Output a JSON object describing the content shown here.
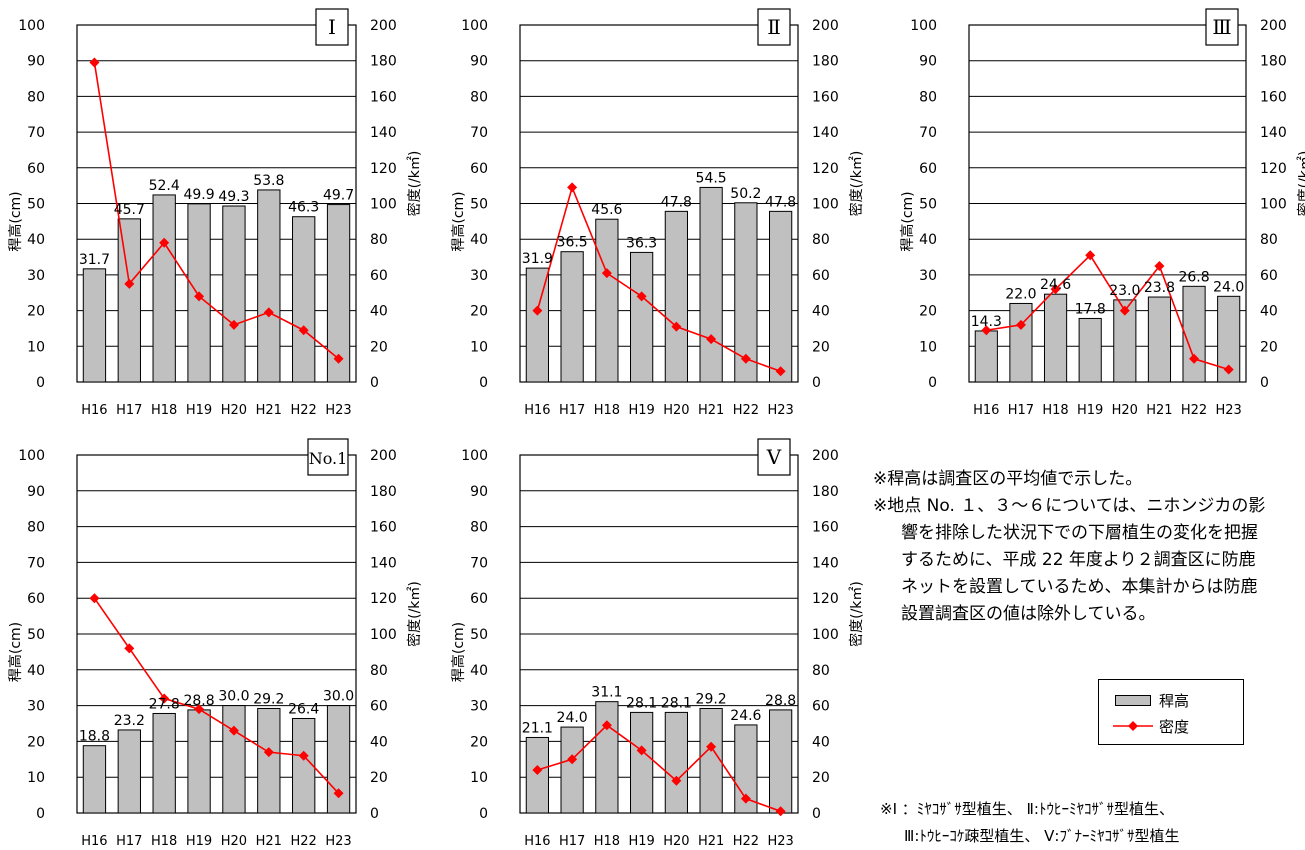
{
  "chart_data": [
    {
      "type": "bar",
      "id": "I",
      "panel_label": "Ⅰ",
      "categories": [
        "H16",
        "H17",
        "H18",
        "H19",
        "H20",
        "H21",
        "H22",
        "H23"
      ],
      "series": [
        {
          "name": "稈高",
          "type": "bar",
          "axis": "left",
          "values": [
            31.7,
            45.7,
            52.4,
            49.9,
            49.3,
            53.8,
            46.3,
            49.7
          ],
          "labels": [
            "31.7",
            "45.7",
            "52.4",
            "49.9",
            "49.3",
            "53.8",
            "46.3",
            "49.7"
          ]
        },
        {
          "name": "密度",
          "type": "line",
          "axis": "right",
          "values": [
            179,
            55,
            78,
            48,
            32,
            39,
            29,
            13
          ]
        }
      ],
      "ylabel": "稈高(cm)",
      "y2label": "密度(/k㎡)",
      "ylim": [
        0,
        100
      ],
      "y2lim": [
        0,
        200
      ],
      "yticks": [
        "0",
        "10",
        "20",
        "30",
        "40",
        "50",
        "60",
        "70",
        "80",
        "90",
        "100"
      ],
      "y2ticks": [
        "0",
        "20",
        "40",
        "60",
        "80",
        "100",
        "120",
        "140",
        "160",
        "180",
        "200"
      ],
      "grid": true
    },
    {
      "type": "bar",
      "id": "II",
      "panel_label": "Ⅱ",
      "categories": [
        "H16",
        "H17",
        "H18",
        "H19",
        "H20",
        "H21",
        "H22",
        "H23"
      ],
      "series": [
        {
          "name": "稈高",
          "type": "bar",
          "axis": "left",
          "values": [
            31.9,
            36.5,
            45.6,
            36.3,
            47.8,
            54.5,
            50.2,
            47.8
          ],
          "labels": [
            "31.9",
            "36.5",
            "45.6",
            "36.3",
            "47.8",
            "54.5",
            "50.2",
            "47.8"
          ]
        },
        {
          "name": "密度",
          "type": "line",
          "axis": "right",
          "values": [
            40,
            109,
            61,
            48,
            31,
            24,
            13,
            6
          ]
        }
      ],
      "ylabel": "稈高(cm)",
      "y2label": "密度(/k㎡)",
      "ylim": [
        0,
        100
      ],
      "y2lim": [
        0,
        200
      ],
      "yticks": [
        "0",
        "10",
        "20",
        "30",
        "40",
        "50",
        "60",
        "70",
        "80",
        "90",
        "100"
      ],
      "y2ticks": [
        "0",
        "20",
        "40",
        "60",
        "80",
        "100",
        "120",
        "140",
        "160",
        "180",
        "200"
      ],
      "grid": true
    },
    {
      "type": "bar",
      "id": "III",
      "panel_label": "Ⅲ",
      "categories": [
        "H16",
        "H17",
        "H18",
        "H19",
        "H20",
        "H21",
        "H22",
        "H23"
      ],
      "series": [
        {
          "name": "稈高",
          "type": "bar",
          "axis": "left",
          "values": [
            14.3,
            22.0,
            24.6,
            17.8,
            23.0,
            23.8,
            26.8,
            24.0
          ],
          "labels": [
            "14.3",
            "22.0",
            "24.6",
            "17.8",
            "23.0",
            "23.8",
            "26.8",
            "24.0"
          ]
        },
        {
          "name": "密度",
          "type": "line",
          "axis": "right",
          "values": [
            29,
            32,
            52,
            71,
            40,
            65,
            13,
            7
          ]
        }
      ],
      "ylabel": "稈高(cm)",
      "y2label": "密度(/k㎡)",
      "ylim": [
        0,
        100
      ],
      "y2lim": [
        0,
        200
      ],
      "yticks": [
        "0",
        "10",
        "20",
        "30",
        "40",
        "50",
        "60",
        "70",
        "80",
        "90",
        "100"
      ],
      "y2ticks": [
        "0",
        "20",
        "40",
        "60",
        "80",
        "100",
        "120",
        "140",
        "160",
        "180",
        "200"
      ],
      "grid": true
    },
    {
      "type": "bar",
      "id": "No1",
      "panel_label": "No.1",
      "categories": [
        "H16",
        "H17",
        "H18",
        "H19",
        "H20",
        "H21",
        "H22",
        "H23"
      ],
      "series": [
        {
          "name": "稈高",
          "type": "bar",
          "axis": "left",
          "values": [
            18.8,
            23.2,
            27.8,
            28.8,
            30.0,
            29.2,
            26.4,
            30.0
          ],
          "labels": [
            "18.8",
            "23.2",
            "27.8",
            "28.8",
            "30.0",
            "29.2",
            "26.4",
            "30.0"
          ]
        },
        {
          "name": "密度",
          "type": "line",
          "axis": "right",
          "values": [
            120,
            92,
            64,
            58,
            46,
            34,
            32,
            11
          ]
        }
      ],
      "ylabel": "稈高(cm)",
      "y2label": "密度(/k㎡)",
      "ylim": [
        0,
        100
      ],
      "y2lim": [
        0,
        200
      ],
      "yticks": [
        "0",
        "10",
        "20",
        "30",
        "40",
        "50",
        "60",
        "70",
        "80",
        "90",
        "100"
      ],
      "y2ticks": [
        "0",
        "20",
        "40",
        "60",
        "80",
        "100",
        "120",
        "140",
        "160",
        "180",
        "200"
      ],
      "grid": true
    },
    {
      "type": "bar",
      "id": "V",
      "panel_label": "Ⅴ",
      "categories": [
        "H16",
        "H17",
        "H18",
        "H19",
        "H20",
        "H21",
        "H22",
        "H23"
      ],
      "series": [
        {
          "name": "稈高",
          "type": "bar",
          "axis": "left",
          "values": [
            21.1,
            24.0,
            31.1,
            28.1,
            28.1,
            29.2,
            24.6,
            28.8
          ],
          "labels": [
            "21.1",
            "24.0",
            "31.1",
            "28.1",
            "28.1",
            "29.2",
            "24.6",
            "28.8"
          ]
        },
        {
          "name": "密度",
          "type": "line",
          "axis": "right",
          "values": [
            24,
            30,
            49,
            35,
            18,
            37,
            8,
            1
          ]
        }
      ],
      "ylabel": "稈高(cm)",
      "y2label": "密度(/k㎡)",
      "ylim": [
        0,
        100
      ],
      "y2lim": [
        0,
        200
      ],
      "yticks": [
        "0",
        "10",
        "20",
        "30",
        "40",
        "50",
        "60",
        "70",
        "80",
        "90",
        "100"
      ],
      "y2ticks": [
        "0",
        "20",
        "40",
        "60",
        "80",
        "100",
        "120",
        "140",
        "160",
        "180",
        "200"
      ],
      "grid": true
    }
  ],
  "colors": {
    "bar_fill": "#c0c0c0",
    "bar_stroke": "#000000",
    "line": "#ff0000",
    "marker": "#ff0000",
    "grid": "#000000",
    "text": "#000000"
  },
  "legend": {
    "bar_label": "稈高",
    "line_label": "密度"
  },
  "notes": {
    "line1": "※稈高は調査区の平均値で示した。",
    "line2": "※地点 No. １、３～６については、ニホンジカの影",
    "line3": "響を排除した状況下での下層植生の変化を把握",
    "line4": "するために、平成 22 年度より２調査区に防鹿",
    "line5": "ネットを設置しているため、本集計からは防鹿",
    "line6": "設置調査区の値は除外している。"
  },
  "footnotes": {
    "line1": "※Ⅰ ：ﾐﾔｺｻﾞｻ型植生、 Ⅱ:ﾄｳﾋｰﾐﾔｺｻﾞｻ型植生、",
    "line2": "Ⅲ:ﾄｳﾋｰｺｹ疎型植生、 Ⅴ:ﾌﾞﾅｰﾐﾔｺｻﾞｻ型植生"
  }
}
